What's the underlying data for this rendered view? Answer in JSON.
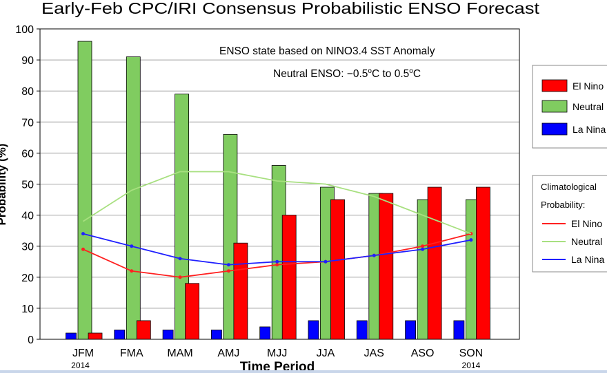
{
  "chart_data": {
    "type": "bar",
    "title": "Early-Feb CPC/IRI Consensus Probabilistic ENSO Forecast",
    "xlabel": "Time Period",
    "ylabel": "Probability (%)",
    "ylim": [
      0,
      100
    ],
    "yticks": [
      0,
      10,
      20,
      30,
      40,
      50,
      60,
      70,
      80,
      90,
      100
    ],
    "grid": true,
    "categories": [
      "JFM",
      "FMA",
      "MAM",
      "AMJ",
      "MJJ",
      "JJA",
      "JAS",
      "ASO",
      "SON"
    ],
    "year_labels": {
      "first": "2014",
      "last": "2014"
    },
    "annotations": {
      "line1": "ENSO state based on NINO3.4 SST Anomaly",
      "line2_prefix": "Neutral ENSO: −0.5",
      "line2_mid": "C to 0.5",
      "line2_suffix": "C",
      "degree": "o"
    },
    "series": [
      {
        "name": "La Nina",
        "color": "#0000ff",
        "values": [
          2,
          3,
          3,
          3,
          4,
          6,
          6,
          6,
          6
        ]
      },
      {
        "name": "Neutral",
        "color": "#80cc60",
        "values": [
          96,
          91,
          79,
          66,
          56,
          49,
          47,
          45,
          45
        ]
      },
      {
        "name": "El Nino",
        "color": "#ff0000",
        "values": [
          2,
          6,
          18,
          31,
          40,
          45,
          47,
          49,
          49
        ]
      }
    ],
    "climatology": [
      {
        "name": "El Nino",
        "color": "#ff2020",
        "values": [
          29,
          22,
          20,
          22,
          24,
          25,
          27,
          30,
          34
        ]
      },
      {
        "name": "Neutral",
        "color": "#a8e080",
        "values": [
          38,
          48,
          54,
          54,
          51,
          50,
          46,
          40,
          34
        ]
      },
      {
        "name": "La Nina",
        "color": "#2020ff",
        "values": [
          34,
          30,
          26,
          24,
          25,
          25,
          27,
          29,
          32
        ]
      }
    ],
    "legend": {
      "placement": "right",
      "bar_labels": [
        "El Nino",
        "Neutral",
        "La Nina"
      ],
      "clim_title_1": "Climatological",
      "clim_title_2": "Probability:",
      "clim_labels": [
        "El Nino",
        "Neutral",
        "La Nina"
      ]
    }
  }
}
